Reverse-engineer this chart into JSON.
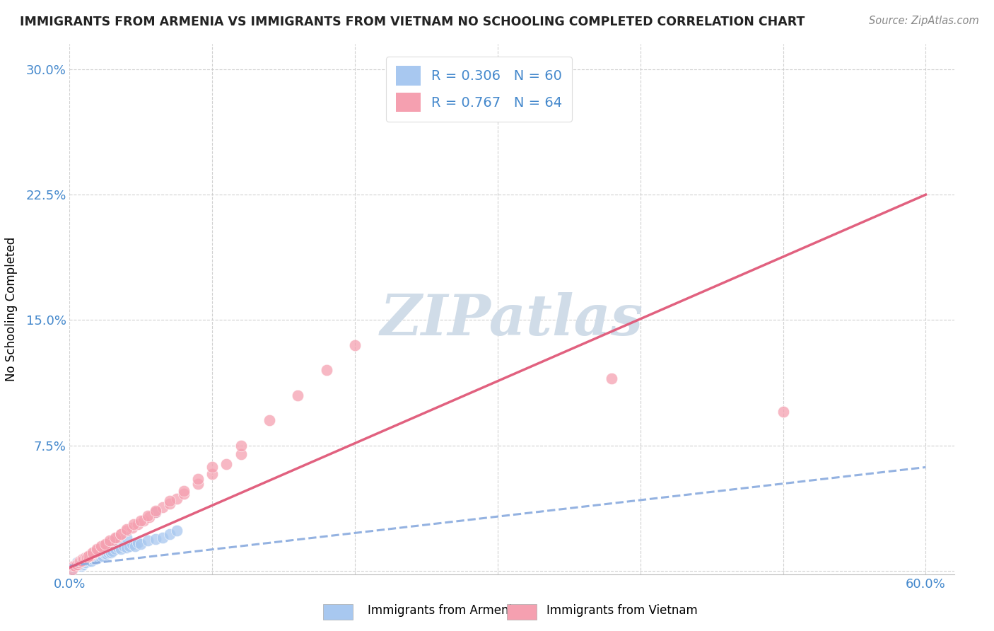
{
  "title": "IMMIGRANTS FROM ARMENIA VS IMMIGRANTS FROM VIETNAM NO SCHOOLING COMPLETED CORRELATION CHART",
  "source": "Source: ZipAtlas.com",
  "ylabel": "No Schooling Completed",
  "xlim": [
    0.0,
    0.62
  ],
  "ylim": [
    -0.002,
    0.315
  ],
  "xticks": [
    0.0,
    0.1,
    0.2,
    0.3,
    0.4,
    0.5,
    0.6
  ],
  "xticklabels": [
    "0.0%",
    "",
    "",
    "",
    "",
    "",
    "60.0%"
  ],
  "yticks": [
    0.0,
    0.075,
    0.15,
    0.225,
    0.3
  ],
  "yticklabels": [
    "",
    "7.5%",
    "15.0%",
    "22.5%",
    "30.0%"
  ],
  "legend_armenia": "Immigrants from Armenia",
  "legend_vietnam": "Immigrants from Vietnam",
  "r_armenia": "0.306",
  "n_armenia": "60",
  "r_vietnam": "0.767",
  "n_vietnam": "64",
  "color_armenia": "#A8C8F0",
  "color_vietnam": "#F5A0B0",
  "color_armenia_line": "#88AADE",
  "color_vietnam_line": "#E05878",
  "watermark": "ZIPatlas",
  "watermark_color": "#D0DCE8",
  "title_color": "#222222",
  "tick_color": "#4488CC",
  "armenia_scatter_x": [
    0.002,
    0.003,
    0.004,
    0.005,
    0.005,
    0.006,
    0.007,
    0.008,
    0.008,
    0.009,
    0.01,
    0.01,
    0.01,
    0.011,
    0.012,
    0.013,
    0.014,
    0.015,
    0.015,
    0.016,
    0.017,
    0.018,
    0.019,
    0.02,
    0.02,
    0.021,
    0.022,
    0.023,
    0.024,
    0.025,
    0.026,
    0.027,
    0.028,
    0.029,
    0.03,
    0.032,
    0.034,
    0.036,
    0.038,
    0.04,
    0.042,
    0.044,
    0.046,
    0.048,
    0.05,
    0.055,
    0.06,
    0.065,
    0.07,
    0.075,
    0.003,
    0.006,
    0.009,
    0.012,
    0.016,
    0.02,
    0.025,
    0.03,
    0.04,
    0.06
  ],
  "armenia_scatter_y": [
    0.001,
    0.002,
    0.003,
    0.003,
    0.005,
    0.004,
    0.005,
    0.003,
    0.006,
    0.004,
    0.005,
    0.007,
    0.006,
    0.005,
    0.007,
    0.006,
    0.007,
    0.008,
    0.006,
    0.007,
    0.008,
    0.007,
    0.009,
    0.008,
    0.01,
    0.009,
    0.01,
    0.009,
    0.011,
    0.01,
    0.01,
    0.011,
    0.012,
    0.011,
    0.012,
    0.013,
    0.014,
    0.013,
    0.015,
    0.014,
    0.015,
    0.016,
    0.015,
    0.017,
    0.016,
    0.018,
    0.019,
    0.02,
    0.022,
    0.024,
    0.002,
    0.004,
    0.006,
    0.008,
    0.01,
    0.012,
    0.015,
    0.018,
    0.02,
    0.035
  ],
  "vietnam_scatter_x": [
    0.002,
    0.003,
    0.004,
    0.005,
    0.006,
    0.007,
    0.008,
    0.009,
    0.01,
    0.011,
    0.012,
    0.013,
    0.014,
    0.015,
    0.016,
    0.017,
    0.018,
    0.019,
    0.02,
    0.022,
    0.024,
    0.026,
    0.028,
    0.03,
    0.033,
    0.036,
    0.04,
    0.044,
    0.048,
    0.052,
    0.056,
    0.06,
    0.065,
    0.07,
    0.075,
    0.08,
    0.09,
    0.1,
    0.11,
    0.12,
    0.013,
    0.016,
    0.019,
    0.022,
    0.025,
    0.028,
    0.032,
    0.036,
    0.04,
    0.045,
    0.05,
    0.055,
    0.06,
    0.07,
    0.08,
    0.09,
    0.1,
    0.12,
    0.14,
    0.16,
    0.18,
    0.2,
    0.5,
    0.38
  ],
  "vietnam_scatter_y": [
    0.001,
    0.003,
    0.003,
    0.004,
    0.005,
    0.006,
    0.006,
    0.007,
    0.007,
    0.008,
    0.008,
    0.009,
    0.009,
    0.01,
    0.01,
    0.011,
    0.012,
    0.012,
    0.013,
    0.014,
    0.015,
    0.016,
    0.017,
    0.018,
    0.02,
    0.022,
    0.024,
    0.026,
    0.028,
    0.03,
    0.032,
    0.035,
    0.038,
    0.04,
    0.043,
    0.046,
    0.052,
    0.058,
    0.064,
    0.07,
    0.009,
    0.011,
    0.013,
    0.015,
    0.016,
    0.018,
    0.02,
    0.022,
    0.025,
    0.028,
    0.03,
    0.033,
    0.036,
    0.042,
    0.048,
    0.055,
    0.062,
    0.075,
    0.09,
    0.105,
    0.12,
    0.135,
    0.095,
    0.115
  ],
  "armenia_line_x": [
    0.0,
    0.6
  ],
  "armenia_line_y": [
    0.003,
    0.062
  ],
  "vietnam_line_x": [
    0.0,
    0.6
  ],
  "vietnam_line_y": [
    0.002,
    0.225
  ]
}
